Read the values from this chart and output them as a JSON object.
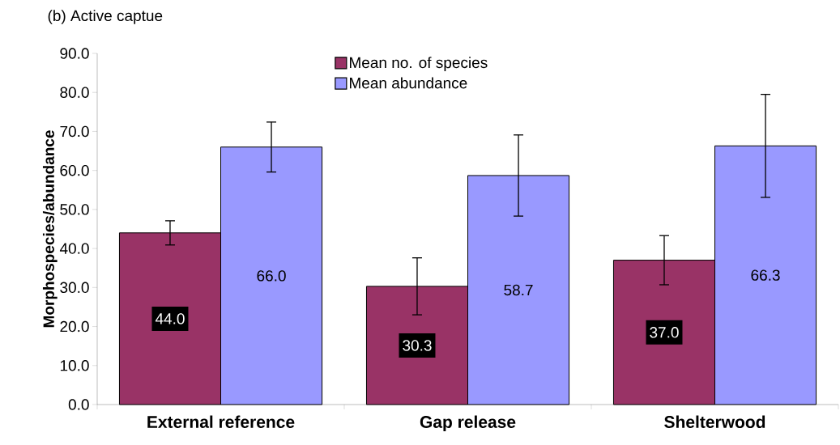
{
  "chart_data": {
    "type": "bar",
    "title": "(b) Active captue",
    "ylabel": "Morphospecies/abundance",
    "categories": [
      "External reference",
      "Gap release",
      "Shelterwood"
    ],
    "series": [
      {
        "name": "Mean no. of species",
        "color": "#993366",
        "values": [
          44.0,
          30.3,
          37.0
        ],
        "errors": [
          3.1,
          7.3,
          6.3
        ],
        "value_labels": [
          "44.0",
          "30.3",
          "37.0"
        ]
      },
      {
        "name": "Mean abundance",
        "color": "#9999ff",
        "values": [
          66.0,
          58.7,
          66.3
        ],
        "errors": [
          6.4,
          10.4,
          13.2
        ],
        "value_labels": [
          "66.0",
          "58.7",
          "66.3"
        ]
      }
    ],
    "ylim": [
      0,
      90
    ],
    "yticks": [
      {
        "value": 0,
        "label": "0.0"
      },
      {
        "value": 10,
        "label": "10.0"
      },
      {
        "value": 20,
        "label": "20.0"
      },
      {
        "value": 30,
        "label": "30.0"
      },
      {
        "value": 40,
        "label": "40.0"
      },
      {
        "value": 50,
        "label": "50.0"
      },
      {
        "value": 60,
        "label": "60.0"
      },
      {
        "value": 70,
        "label": "70.0"
      },
      {
        "value": 80,
        "label": "80.0"
      },
      {
        "value": 90,
        "label": "90.0"
      }
    ],
    "grid": false,
    "legend": "top"
  }
}
